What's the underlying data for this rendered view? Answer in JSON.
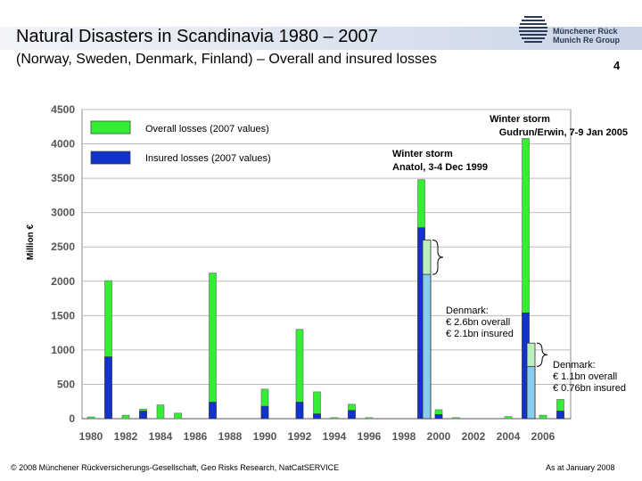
{
  "header": {
    "title": "Natural Disasters in Scandinavia 1980 – 2007",
    "subtitle": "(Norway, Sweden, Denmark, Finland) – Overall and insured losses",
    "page_number": "4",
    "logo_line1": "Münchener Rück",
    "logo_line2": "Munich Re Group"
  },
  "footer": {
    "copyright": "© 2008 Münchener Rückversicherungs-Gesellschaft, Geo Risks Research, NatCatSERVICE",
    "date_note": "As at January 2008"
  },
  "colors": {
    "overall": "#33ee33",
    "insured": "#1133cc",
    "denmark_overall": "#bbf0bb",
    "denmark_insured": "#88ccee",
    "title_bar": "#c9d4e6"
  },
  "chart_data": {
    "type": "bar",
    "stacked_overlay": true,
    "ylabel": "Million €",
    "ylim": [
      0,
      4500
    ],
    "yticks": [
      0,
      500,
      1000,
      1500,
      2000,
      2500,
      3000,
      3500,
      4000,
      4500
    ],
    "xticks": [
      "1980",
      "1982",
      "1984",
      "1986",
      "1988",
      "1990",
      "1992",
      "1994",
      "1996",
      "1998",
      "2000",
      "2002",
      "2004",
      "2006"
    ],
    "grid": true,
    "legend_position": "top-left",
    "years": [
      1980,
      1981,
      1982,
      1983,
      1984,
      1985,
      1986,
      1987,
      1988,
      1989,
      1990,
      1991,
      1992,
      1993,
      1994,
      1995,
      1996,
      1997,
      1998,
      1999,
      2000,
      2001,
      2002,
      2003,
      2004,
      2005,
      2006,
      2007
    ],
    "series": [
      {
        "name": "Overall losses (2007 values)",
        "values": [
          25,
          2010,
          50,
          140,
          200,
          80,
          0,
          2120,
          0,
          0,
          430,
          0,
          1300,
          390,
          15,
          210,
          15,
          0,
          0,
          3480,
          130,
          15,
          0,
          0,
          30,
          4080,
          50,
          280
        ]
      },
      {
        "name": "Insured losses (2007 values)",
        "values": [
          0,
          900,
          0,
          110,
          0,
          0,
          0,
          240,
          0,
          0,
          180,
          0,
          240,
          70,
          0,
          120,
          0,
          0,
          0,
          2780,
          60,
          0,
          0,
          0,
          0,
          1540,
          0,
          110
        ]
      }
    ],
    "highlights": [
      {
        "year": 1999,
        "overall": 2600,
        "insured": 2100,
        "label": "Denmark:\n€ 2.6bn overall\n€ 2.1bn insured",
        "lines": [
          "Denmark:",
          "€ 2.6bn overall",
          "€ 2.1bn insured"
        ]
      },
      {
        "year": 2005,
        "overall": 1100,
        "insured": 760,
        "label": "Denmark:\n€ 1.1bn overall\n€ 0.76bn insured",
        "lines": [
          "Denmark:",
          "€ 1.1bn overall",
          "€ 0.76bn insured"
        ]
      }
    ],
    "annotations": [
      {
        "year": 1999,
        "lines": [
          "Winter storm",
          "Anatol, 3-4 Dec 1999"
        ]
      },
      {
        "year": 2005,
        "lines": [
          "Winter storm",
          "Gudrun/Erwin, 7-9 Jan 2005"
        ]
      }
    ]
  }
}
